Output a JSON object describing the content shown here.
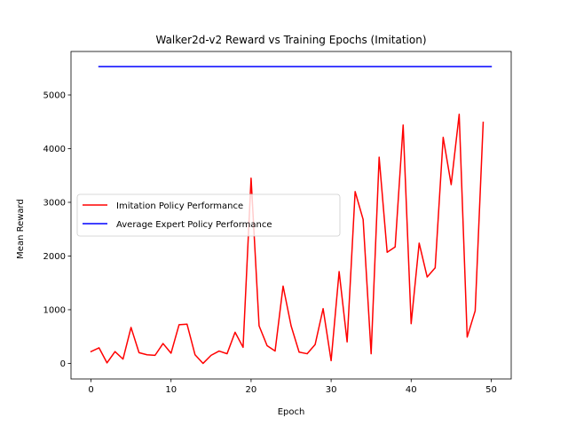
{
  "chart_data": {
    "type": "line",
    "title": "Walker2d-v2 Reward vs Training Epochs (Imitation)",
    "xlabel": "Epoch",
    "ylabel": "Mean Reward",
    "xlim": [
      -2.5,
      52.5
    ],
    "ylim": [
      -290,
      5810
    ],
    "xticks": [
      0,
      10,
      20,
      30,
      40,
      50
    ],
    "yticks": [
      0,
      1000,
      2000,
      3000,
      4000,
      5000
    ],
    "grid": false,
    "legend_position": "center-left",
    "series": [
      {
        "name": "Imitation Policy Performance",
        "color": "#ff0000",
        "x": [
          0,
          1,
          2,
          3,
          4,
          5,
          6,
          7,
          8,
          9,
          10,
          11,
          12,
          13,
          14,
          15,
          16,
          17,
          18,
          19,
          20,
          21,
          22,
          23,
          24,
          25,
          26,
          27,
          28,
          29,
          30,
          31,
          32,
          33,
          34,
          35,
          36,
          37,
          38,
          39,
          40,
          41,
          42,
          43,
          44,
          45,
          46,
          47,
          48,
          49
        ],
        "values": [
          220,
          290,
          10,
          220,
          80,
          670,
          200,
          160,
          150,
          370,
          190,
          720,
          730,
          160,
          0,
          150,
          230,
          180,
          580,
          300,
          3450,
          700,
          330,
          230,
          1440,
          700,
          210,
          180,
          350,
          1020,
          50,
          1710,
          400,
          3200,
          2680,
          180,
          3840,
          2070,
          2170,
          4440,
          740,
          2240,
          1610,
          1780,
          4210,
          3330,
          4640,
          490,
          980,
          4490
        ]
      },
      {
        "name": "Average Expert Policy Performance",
        "color": "#0000ff",
        "x": [
          1,
          50
        ],
        "values": [
          5530,
          5530
        ]
      }
    ]
  }
}
